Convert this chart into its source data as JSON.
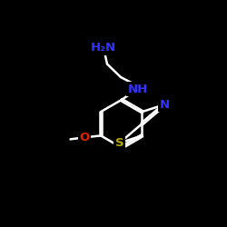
{
  "background_color": "#000000",
  "bond_color": "#ffffff",
  "bond_width": 1.8,
  "atom_colors": {
    "N": "#3333ff",
    "NH": "#3333ff",
    "H2N": "#3333ff",
    "O": "#dd2200",
    "S": "#bbaa00"
  },
  "figsize": [
    2.5,
    2.5
  ],
  "dpi": 100,
  "xlim": [
    0,
    10
  ],
  "ylim": [
    0,
    10
  ]
}
